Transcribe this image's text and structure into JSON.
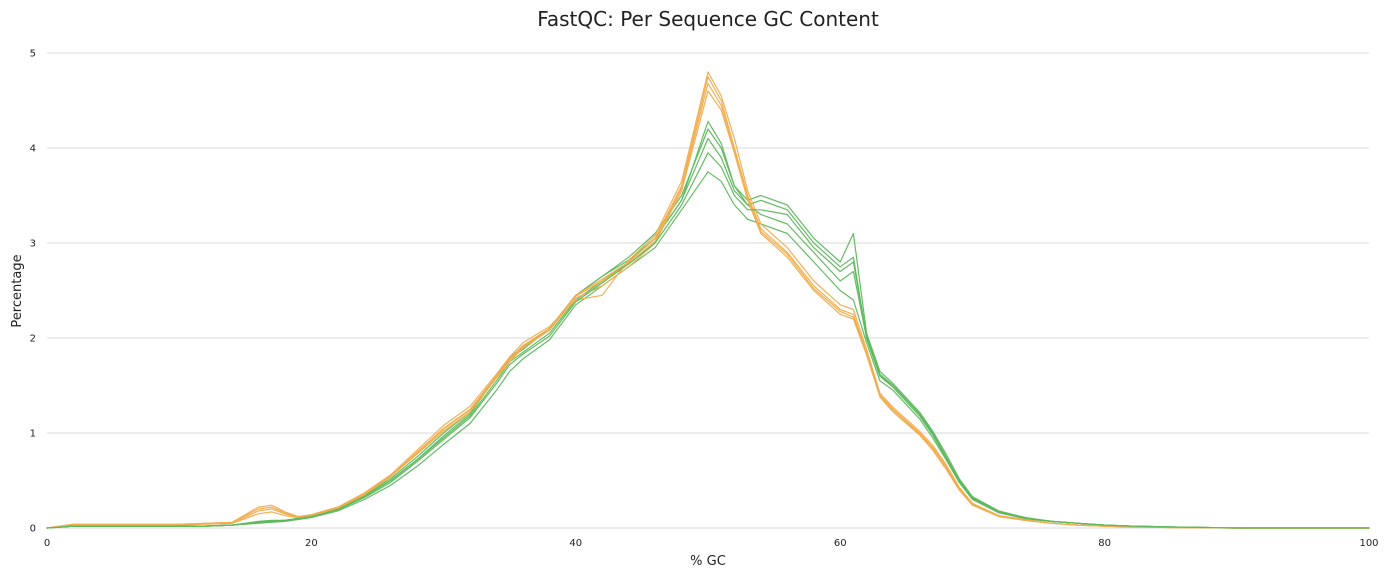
{
  "chart_data": {
    "type": "line",
    "title": "FastQC: Per Sequence GC Content",
    "xlabel": "% GC",
    "ylabel": "Percentage",
    "xlim": [
      0,
      100
    ],
    "ylim": [
      0,
      5
    ],
    "x_ticks": [
      "0",
      "20",
      "40",
      "60",
      "80",
      "100"
    ],
    "y_ticks": [
      "0",
      "1",
      "2",
      "3",
      "4",
      "5"
    ],
    "grid": true,
    "legend": "none",
    "x": [
      0,
      2,
      4,
      6,
      8,
      10,
      12,
      14,
      16,
      17,
      18,
      19,
      20,
      22,
      24,
      26,
      28,
      30,
      32,
      34,
      35,
      36,
      38,
      40,
      42,
      44,
      46,
      48,
      50,
      51,
      52,
      53,
      54,
      56,
      58,
      60,
      61,
      62,
      63,
      64,
      66,
      67,
      68,
      69,
      70,
      72,
      74,
      76,
      78,
      80,
      82,
      85,
      90,
      95,
      100
    ],
    "series": [
      {
        "color": "#5cb85c",
        "values": [
          0,
          0.02,
          0.02,
          0.02,
          0.02,
          0.02,
          0.02,
          0.03,
          0.06,
          0.07,
          0.08,
          0.1,
          0.12,
          0.2,
          0.33,
          0.5,
          0.72,
          0.95,
          1.18,
          1.55,
          1.75,
          1.85,
          2.05,
          2.4,
          2.6,
          2.8,
          3.05,
          3.45,
          4.1,
          3.9,
          3.55,
          3.4,
          3.45,
          3.35,
          3.0,
          2.75,
          2.85,
          2.0,
          1.6,
          1.5,
          1.2,
          1.0,
          0.75,
          0.5,
          0.32,
          0.17,
          0.1,
          0.07,
          0.05,
          0.03,
          0.02,
          0.01,
          0,
          0,
          0
        ]
      },
      {
        "color": "#5cb85c",
        "values": [
          0,
          0.02,
          0.02,
          0.02,
          0.02,
          0.02,
          0.02,
          0.03,
          0.07,
          0.08,
          0.08,
          0.1,
          0.13,
          0.21,
          0.35,
          0.52,
          0.75,
          1.0,
          1.22,
          1.6,
          1.8,
          1.9,
          2.1,
          2.45,
          2.65,
          2.85,
          3.1,
          3.5,
          4.2,
          4.0,
          3.6,
          3.45,
          3.5,
          3.4,
          3.05,
          2.8,
          3.1,
          2.05,
          1.65,
          1.52,
          1.22,
          1.02,
          0.78,
          0.52,
          0.33,
          0.18,
          0.11,
          0.07,
          0.05,
          0.03,
          0.02,
          0.01,
          0,
          0,
          0
        ]
      },
      {
        "color": "#5cb85c",
        "values": [
          0,
          0.02,
          0.02,
          0.02,
          0.02,
          0.02,
          0.02,
          0.03,
          0.05,
          0.06,
          0.07,
          0.09,
          0.11,
          0.18,
          0.3,
          0.45,
          0.65,
          0.88,
          1.1,
          1.45,
          1.65,
          1.78,
          1.98,
          2.35,
          2.55,
          2.75,
          2.95,
          3.35,
          3.75,
          3.65,
          3.4,
          3.25,
          3.2,
          3.1,
          2.8,
          2.5,
          2.4,
          1.95,
          1.55,
          1.45,
          1.15,
          0.95,
          0.72,
          0.48,
          0.3,
          0.16,
          0.1,
          0.07,
          0.05,
          0.03,
          0.02,
          0.01,
          0,
          0,
          0
        ]
      },
      {
        "color": "#5cb85c",
        "values": [
          0,
          0.02,
          0.02,
          0.02,
          0.02,
          0.02,
          0.02,
          0.03,
          0.06,
          0.07,
          0.08,
          0.1,
          0.12,
          0.2,
          0.34,
          0.5,
          0.72,
          0.97,
          1.2,
          1.6,
          1.78,
          1.88,
          2.1,
          2.45,
          2.65,
          2.82,
          3.05,
          3.45,
          4.28,
          4.05,
          3.6,
          3.4,
          3.3,
          3.2,
          2.9,
          2.6,
          2.7,
          2.0,
          1.6,
          1.48,
          1.18,
          0.98,
          0.74,
          0.5,
          0.31,
          0.17,
          0.1,
          0.07,
          0.05,
          0.03,
          0.02,
          0.01,
          0,
          0,
          0
        ]
      },
      {
        "color": "#f0ad4e",
        "values": [
          0,
          0.04,
          0.04,
          0.04,
          0.04,
          0.04,
          0.05,
          0.06,
          0.2,
          0.22,
          0.16,
          0.12,
          0.14,
          0.22,
          0.36,
          0.55,
          0.8,
          1.05,
          1.25,
          1.6,
          1.78,
          1.92,
          2.1,
          2.45,
          2.62,
          2.8,
          3.05,
          3.6,
          4.75,
          4.5,
          4.0,
          3.5,
          3.15,
          2.9,
          2.55,
          2.3,
          2.25,
          1.85,
          1.4,
          1.25,
          1.0,
          0.85,
          0.65,
          0.42,
          0.25,
          0.13,
          0.08,
          0.05,
          0.03,
          0.02,
          0.01,
          0.005,
          0,
          0,
          0
        ]
      },
      {
        "color": "#f0ad4e",
        "values": [
          0,
          0.03,
          0.03,
          0.03,
          0.03,
          0.03,
          0.04,
          0.05,
          0.15,
          0.17,
          0.13,
          0.11,
          0.13,
          0.21,
          0.35,
          0.54,
          0.78,
          1.02,
          1.22,
          1.58,
          1.75,
          1.9,
          2.08,
          2.42,
          2.55,
          2.75,
          3.0,
          3.55,
          4.6,
          4.4,
          3.95,
          3.45,
          3.1,
          2.85,
          2.5,
          2.25,
          2.2,
          1.82,
          1.38,
          1.22,
          0.98,
          0.82,
          0.62,
          0.4,
          0.24,
          0.12,
          0.08,
          0.05,
          0.03,
          0.02,
          0.01,
          0.005,
          0,
          0,
          0
        ]
      },
      {
        "color": "#f0ad4e",
        "values": [
          0,
          0.04,
          0.04,
          0.04,
          0.04,
          0.04,
          0.05,
          0.06,
          0.22,
          0.24,
          0.17,
          0.12,
          0.14,
          0.22,
          0.37,
          0.56,
          0.82,
          1.08,
          1.28,
          1.62,
          1.8,
          1.95,
          2.12,
          2.4,
          2.45,
          2.82,
          3.08,
          3.65,
          4.8,
          4.55,
          4.1,
          3.55,
          3.2,
          2.95,
          2.6,
          2.35,
          2.3,
          1.88,
          1.42,
          1.27,
          1.02,
          0.87,
          0.67,
          0.43,
          0.26,
          0.13,
          0.09,
          0.05,
          0.03,
          0.02,
          0.01,
          0.005,
          0,
          0,
          0
        ]
      },
      {
        "color": "#f0ad4e",
        "values": [
          0,
          0.03,
          0.03,
          0.03,
          0.03,
          0.03,
          0.04,
          0.05,
          0.18,
          0.2,
          0.15,
          0.11,
          0.13,
          0.21,
          0.35,
          0.55,
          0.79,
          1.04,
          1.24,
          1.6,
          1.77,
          1.91,
          2.1,
          2.44,
          2.6,
          2.78,
          3.02,
          3.58,
          4.68,
          4.45,
          3.98,
          3.48,
          3.12,
          2.88,
          2.52,
          2.28,
          2.22,
          1.84,
          1.39,
          1.24,
          0.99,
          0.84,
          0.64,
          0.41,
          0.25,
          0.13,
          0.08,
          0.05,
          0.03,
          0.02,
          0.01,
          0.005,
          0,
          0,
          0
        ]
      },
      {
        "color": "#5cb85c",
        "values": [
          0,
          0.02,
          0.02,
          0.02,
          0.02,
          0.02,
          0.02,
          0.03,
          0.06,
          0.07,
          0.08,
          0.1,
          0.12,
          0.19,
          0.32,
          0.48,
          0.7,
          0.93,
          1.16,
          1.52,
          1.72,
          1.83,
          2.02,
          2.38,
          2.58,
          2.78,
          3.0,
          3.4,
          3.95,
          3.8,
          3.5,
          3.35,
          3.35,
          3.3,
          2.95,
          2.7,
          2.8,
          2.02,
          1.62,
          1.5,
          1.2,
          1.0,
          0.75,
          0.5,
          0.32,
          0.17,
          0.1,
          0.07,
          0.05,
          0.03,
          0.02,
          0.01,
          0,
          0,
          0
        ]
      }
    ]
  }
}
